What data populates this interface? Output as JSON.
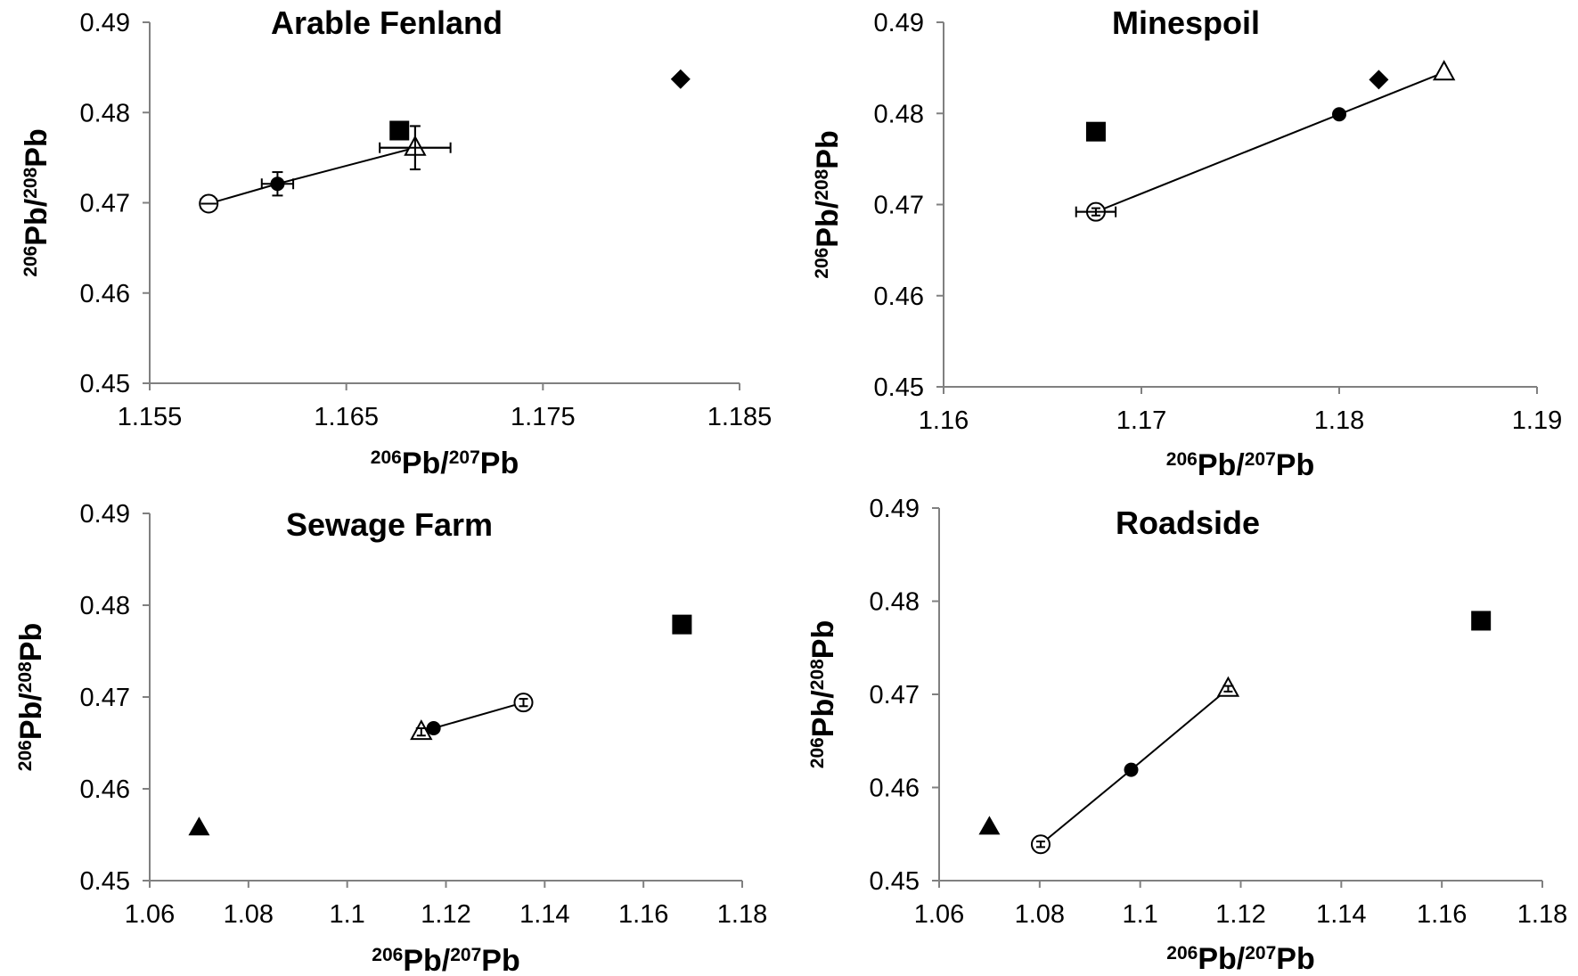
{
  "chart_data": [
    {
      "type": "scatter",
      "title": "Arable Fenland",
      "xlabel": {
        "iso1": "206",
        "el1": "Pb/",
        "iso2": "207",
        "el2": "Pb"
      },
      "ylabel": {
        "iso1": "206",
        "el1": "Pb/",
        "iso2": "208",
        "el2": "Pb"
      },
      "xlim": [
        1.155,
        1.185
      ],
      "ylim": [
        0.45,
        0.49
      ],
      "xticks": [
        "1.155",
        "1.165",
        "1.175",
        "1.185"
      ],
      "yticks": [
        "0.45",
        "0.46",
        "0.47",
        "0.48",
        "0.49"
      ],
      "line": [
        [
          1.158,
          0.4699
        ],
        [
          1.1615,
          0.4721
        ],
        [
          1.1685,
          0.4761
        ]
      ],
      "points": [
        {
          "marker": "circle-open",
          "x": 1.158,
          "y": 0.4699,
          "xerr": 0.0004,
          "yerr": 0.0
        },
        {
          "marker": "circle-filled",
          "x": 1.1615,
          "y": 0.4721,
          "xerr": 0.0008,
          "yerr": 0.0013
        },
        {
          "marker": "triangle-open",
          "x": 1.1685,
          "y": 0.4761,
          "xerr": 0.0018,
          "yerr": 0.0024
        },
        {
          "marker": "square-filled",
          "x": 1.1677,
          "y": 0.478
        },
        {
          "marker": "diamond-filled",
          "x": 1.182,
          "y": 0.4837
        }
      ]
    },
    {
      "type": "scatter",
      "title": "Minespoil",
      "xlabel": {
        "iso1": "206",
        "el1": "Pb/",
        "iso2": "207",
        "el2": "Pb"
      },
      "ylabel": {
        "iso1": "206",
        "el1": "Pb/",
        "iso2": "208",
        "el2": "Pb"
      },
      "xlim": [
        1.16,
        1.19
      ],
      "ylim": [
        0.45,
        0.49
      ],
      "xticks": [
        "1.16",
        "1.17",
        "1.18",
        "1.19"
      ],
      "yticks": [
        "0.45",
        "0.46",
        "0.47",
        "0.48",
        "0.49"
      ],
      "line": [
        [
          1.1677,
          0.4692
        ],
        [
          1.18,
          0.4799
        ],
        [
          1.1853,
          0.4845
        ]
      ],
      "points": [
        {
          "marker": "circle-open",
          "x": 1.1677,
          "y": 0.4692,
          "xerr": 0.001,
          "yerr": 0.0004
        },
        {
          "marker": "circle-filled",
          "x": 1.18,
          "y": 0.4799
        },
        {
          "marker": "triangle-open",
          "x": 1.1853,
          "y": 0.4845
        },
        {
          "marker": "square-filled",
          "x": 1.1677,
          "y": 0.478
        },
        {
          "marker": "diamond-filled",
          "x": 1.182,
          "y": 0.4837
        }
      ]
    },
    {
      "type": "scatter",
      "title": "Sewage Farm",
      "xlabel": {
        "iso1": "206",
        "el1": "Pb/",
        "iso2": "207",
        "el2": "Pb"
      },
      "ylabel": {
        "iso1": "206",
        "el1": "Pb/",
        "iso2": "208",
        "el2": "Pb"
      },
      "xlim": [
        1.06,
        1.18
      ],
      "ylim": [
        0.45,
        0.49
      ],
      "xticks": [
        "1.06",
        "1.08",
        "1.1",
        "1.12",
        "1.14",
        "1.16",
        "1.18"
      ],
      "yticks": [
        "0.45",
        "0.46",
        "0.47",
        "0.48",
        "0.49"
      ],
      "line": [
        [
          1.1175,
          0.4666
        ],
        [
          1.1357,
          0.4694
        ]
      ],
      "points": [
        {
          "marker": "triangle-open",
          "x": 1.115,
          "y": 0.4662,
          "xerr": 0.0,
          "yerr": 0.0004
        },
        {
          "marker": "circle-filled",
          "x": 1.1175,
          "y": 0.4666
        },
        {
          "marker": "circle-open",
          "x": 1.1357,
          "y": 0.4694,
          "xerr": 0.0,
          "yerr": 0.0004
        },
        {
          "marker": "square-filled",
          "x": 1.1678,
          "y": 0.4779
        },
        {
          "marker": "triangle-filled",
          "x": 1.07,
          "y": 0.4558
        }
      ]
    },
    {
      "type": "scatter",
      "title": "Roadside",
      "xlabel": {
        "iso1": "206",
        "el1": "Pb/",
        "iso2": "207",
        "el2": "Pb"
      },
      "ylabel": {
        "iso1": "206",
        "el1": "Pb/",
        "iso2": "208",
        "el2": "Pb"
      },
      "xlim": [
        1.06,
        1.18
      ],
      "ylim": [
        0.45,
        0.49
      ],
      "xticks": [
        "1.06",
        "1.08",
        "1.1",
        "1.12",
        "1.14",
        "1.16",
        "1.18"
      ],
      "yticks": [
        "0.45",
        "0.46",
        "0.47",
        "0.48",
        "0.49"
      ],
      "line": [
        [
          1.0802,
          0.4539
        ],
        [
          1.0982,
          0.4619
        ],
        [
          1.1175,
          0.4706
        ]
      ],
      "points": [
        {
          "marker": "circle-open",
          "x": 1.0802,
          "y": 0.4539,
          "xerr": 0.0,
          "yerr": 0.0003
        },
        {
          "marker": "circle-filled",
          "x": 1.0982,
          "y": 0.4619
        },
        {
          "marker": "triangle-open",
          "x": 1.1175,
          "y": 0.4706,
          "xerr": 0.0,
          "yerr": 0.0003
        },
        {
          "marker": "square-filled",
          "x": 1.1678,
          "y": 0.4779
        },
        {
          "marker": "triangle-filled",
          "x": 1.07,
          "y": 0.4558
        }
      ]
    }
  ]
}
